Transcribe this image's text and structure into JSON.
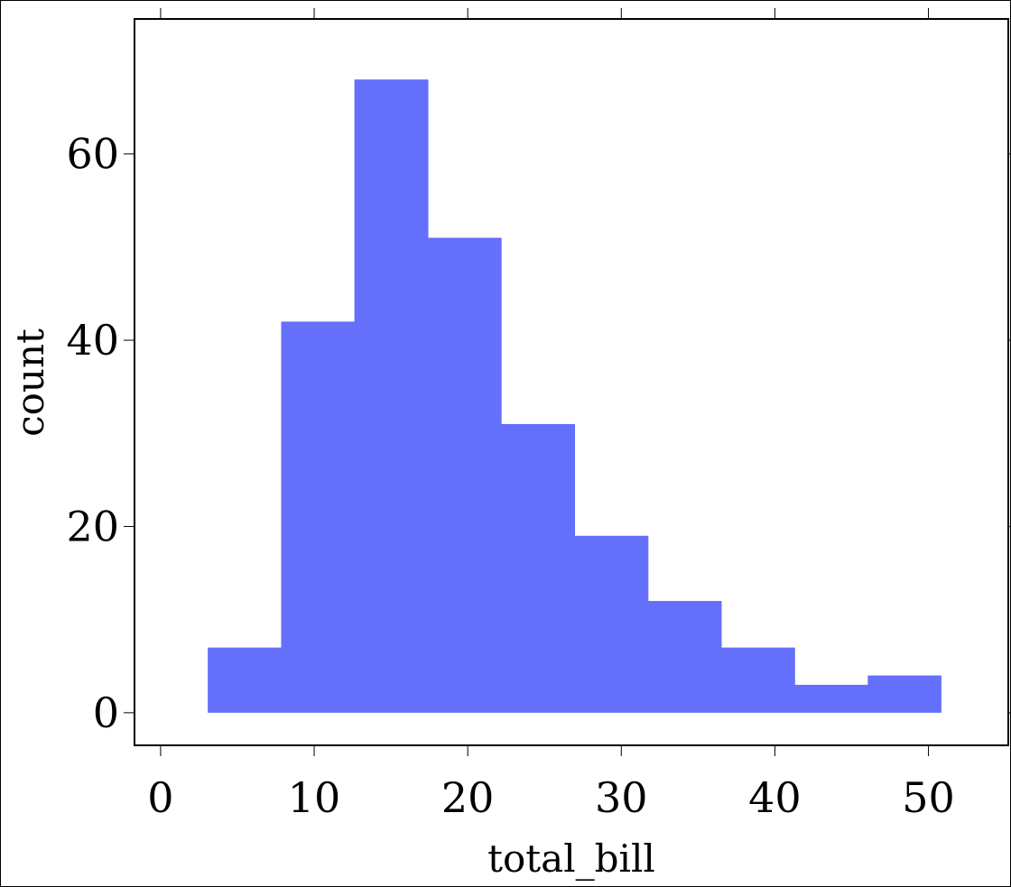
{
  "chart_data": {
    "type": "bar",
    "subtype": "histogram",
    "title": "",
    "xlabel": "total_bill",
    "ylabel": "count",
    "xlim": [
      -1.7,
      55.2
    ],
    "ylim": [
      -3.5,
      74.5
    ],
    "grid": false,
    "bar_color": "#6470fb",
    "bins": [
      {
        "x0": 3.07,
        "x1": 7.85,
        "count": 7
      },
      {
        "x0": 7.85,
        "x1": 12.62,
        "count": 42
      },
      {
        "x0": 12.62,
        "x1": 17.4,
        "count": 68
      },
      {
        "x0": 17.4,
        "x1": 22.17,
        "count": 51
      },
      {
        "x0": 22.17,
        "x1": 26.95,
        "count": 31
      },
      {
        "x0": 26.95,
        "x1": 31.73,
        "count": 19
      },
      {
        "x0": 31.73,
        "x1": 36.5,
        "count": 12
      },
      {
        "x0": 36.5,
        "x1": 41.28,
        "count": 7
      },
      {
        "x0": 41.28,
        "x1": 46.05,
        "count": 3
      },
      {
        "x0": 46.05,
        "x1": 50.81,
        "count": 4
      }
    ],
    "x_ticks": [
      0,
      10,
      20,
      30,
      40,
      50
    ],
    "x_tick_labels": [
      "0",
      "10",
      "20",
      "30",
      "40",
      "50"
    ],
    "y_ticks": [
      0,
      20,
      40,
      60
    ],
    "y_tick_labels": [
      "0",
      "20",
      "40",
      "60"
    ]
  }
}
